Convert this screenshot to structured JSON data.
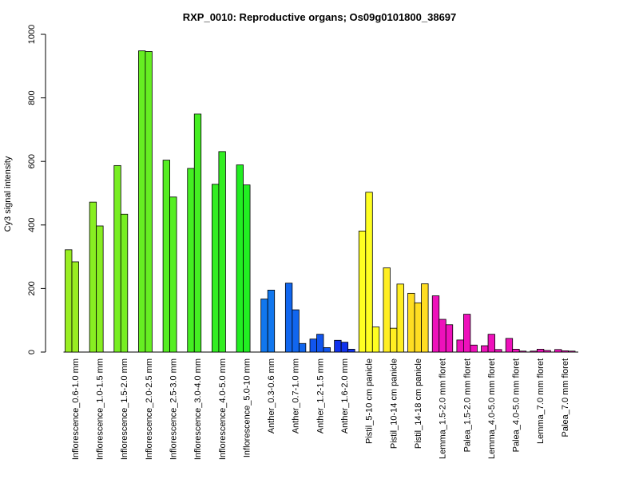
{
  "chart_data": {
    "type": "bar",
    "title": "RXP_0010: Reproductive organs; Os09g0101800_38697",
    "xlabel": "",
    "ylabel": "Cy3 signal intensity",
    "ylim": [
      0,
      1000
    ],
    "yticks": [
      0,
      200,
      400,
      600,
      800,
      1000
    ],
    "grid": false,
    "groups": [
      {
        "label": "Inflorescence_0.6-1.0 mm",
        "color": "#99ee22",
        "values": [
          322,
          284
        ]
      },
      {
        "label": "Inflorescence_1.0-1.5 mm",
        "color": "#88ee22",
        "values": [
          472,
          397
        ]
      },
      {
        "label": "Inflorescence_1.5-2.0 mm",
        "color": "#77ee22",
        "values": [
          587,
          434
        ]
      },
      {
        "label": "Inflorescence_2.0-2.5 mm",
        "color": "#66ee22",
        "values": [
          948,
          946
        ]
      },
      {
        "label": "Inflorescence_2.5-3.0 mm",
        "color": "#55ee22",
        "values": [
          604,
          488
        ]
      },
      {
        "label": "Inflorescence_3.0-4.0 mm",
        "color": "#44ee22",
        "values": [
          578,
          749
        ]
      },
      {
        "label": "Inflorescence_4.0-5.0 mm",
        "color": "#33ee22",
        "values": [
          528,
          631
        ]
      },
      {
        "label": "Inflorescence_5.0-10 mm",
        "color": "#22ee22",
        "values": [
          589,
          526
        ]
      },
      {
        "label": "Anther_0.3-0.6 mm",
        "color": "#1177ee",
        "values": [
          167,
          195
        ]
      },
      {
        "label": "Anther_0.7-1.0 mm",
        "color": "#1166ee",
        "values": [
          217,
          133,
          27
        ]
      },
      {
        "label": "Anther_1.2-1.5 mm",
        "color": "#1155ee",
        "values": [
          41,
          56,
          14
        ]
      },
      {
        "label": "Anther_1.6-2.0 mm",
        "color": "#1133ee",
        "values": [
          37,
          31,
          9
        ]
      },
      {
        "label": "Pistil_5-10 cm panicle",
        "color": "#ffff22",
        "values": [
          381,
          503,
          79
        ]
      },
      {
        "label": "Pistil_10-14 cm panicle",
        "color": "#ffee22",
        "values": [
          265,
          75,
          214
        ]
      },
      {
        "label": "Pistil_14-18 cm panicle",
        "color": "#ffdd22",
        "values": [
          185,
          155,
          215
        ]
      },
      {
        "label": "Lemma_1.5-2.0 mm floret",
        "color": "#ee11bb",
        "values": [
          177,
          103,
          86
        ]
      },
      {
        "label": "Palea_1.5-2.0 mm floret",
        "color": "#ee11bb",
        "values": [
          38,
          119,
          22
        ]
      },
      {
        "label": "Lemma_4.0-5.0 mm floret",
        "color": "#ee11bb",
        "values": [
          20,
          56,
          8
        ]
      },
      {
        "label": "Palea_4.0-5.0 mm floret",
        "color": "#ee11bb",
        "values": [
          43,
          9,
          3
        ]
      },
      {
        "label": "Lemma_7.0 mm floret",
        "color": "#ee11bb",
        "values": [
          3,
          9,
          5
        ]
      },
      {
        "label": "Palea_7.0 mm floret",
        "color": "#ee11bb",
        "values": [
          8,
          4,
          3
        ]
      }
    ]
  }
}
